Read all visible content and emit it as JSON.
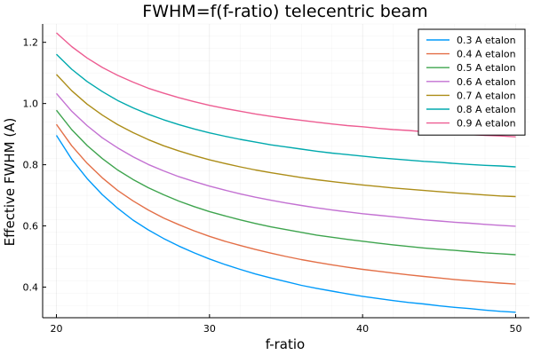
{
  "chart_data": {
    "type": "line",
    "title": "FWHM=f(f-ratio) telecentric beam",
    "xlabel": "f-ratio",
    "ylabel": "Effective FWHM (A)",
    "xlim": [
      19.1,
      50.9
    ],
    "ylim": [
      0.3,
      1.26
    ],
    "xticks": [
      20,
      30,
      40,
      50
    ],
    "yticks": [
      0.4,
      0.6,
      0.8,
      1.0,
      1.2
    ],
    "ytick_labels": [
      "0.4",
      "0.6",
      "0.8",
      "1.0",
      "1.2"
    ],
    "grid": true,
    "legend_position": "top-right",
    "x": [
      20,
      21,
      22,
      23,
      24,
      25,
      26,
      27,
      28,
      29,
      30,
      31,
      32,
      33,
      34,
      35,
      36,
      37,
      38,
      39,
      40,
      41,
      42,
      43,
      44,
      45,
      46,
      47,
      48,
      49,
      50
    ],
    "series": [
      {
        "name": "0.3 A etalon",
        "color": "#009AFA",
        "values": [
          0.896,
          0.818,
          0.755,
          0.702,
          0.658,
          0.619,
          0.587,
          0.559,
          0.534,
          0.512,
          0.492,
          0.474,
          0.458,
          0.443,
          0.43,
          0.418,
          0.406,
          0.396,
          0.387,
          0.378,
          0.37,
          0.363,
          0.356,
          0.35,
          0.345,
          0.339,
          0.334,
          0.33,
          0.325,
          0.321,
          0.318
        ]
      },
      {
        "name": "0.4 A etalon",
        "color": "#E36F47",
        "values": [
          0.932,
          0.862,
          0.805,
          0.757,
          0.716,
          0.682,
          0.652,
          0.626,
          0.604,
          0.584,
          0.566,
          0.55,
          0.536,
          0.523,
          0.511,
          0.5,
          0.49,
          0.481,
          0.473,
          0.465,
          0.458,
          0.452,
          0.446,
          0.44,
          0.435,
          0.43,
          0.425,
          0.421,
          0.417,
          0.413,
          0.41
        ]
      },
      {
        "name": "0.5 A etalon",
        "color": "#3EA44E",
        "values": [
          0.978,
          0.915,
          0.863,
          0.82,
          0.783,
          0.752,
          0.725,
          0.702,
          0.681,
          0.663,
          0.647,
          0.633,
          0.62,
          0.608,
          0.597,
          0.588,
          0.579,
          0.57,
          0.563,
          0.556,
          0.55,
          0.544,
          0.538,
          0.533,
          0.528,
          0.524,
          0.52,
          0.516,
          0.512,
          0.509,
          0.506
        ]
      },
      {
        "name": "0.6 A etalon",
        "color": "#C371D2",
        "values": [
          1.033,
          0.975,
          0.928,
          0.888,
          0.855,
          0.826,
          0.801,
          0.78,
          0.761,
          0.745,
          0.73,
          0.717,
          0.705,
          0.694,
          0.684,
          0.675,
          0.667,
          0.659,
          0.652,
          0.646,
          0.64,
          0.635,
          0.63,
          0.625,
          0.62,
          0.616,
          0.612,
          0.609,
          0.605,
          0.602,
          0.599
        ]
      },
      {
        "name": "0.7 A etalon",
        "color": "#AC8D18",
        "values": [
          1.095,
          1.042,
          0.998,
          0.962,
          0.931,
          0.905,
          0.882,
          0.862,
          0.845,
          0.83,
          0.816,
          0.804,
          0.793,
          0.783,
          0.774,
          0.766,
          0.758,
          0.751,
          0.745,
          0.739,
          0.734,
          0.729,
          0.724,
          0.72,
          0.716,
          0.712,
          0.708,
          0.705,
          0.701,
          0.698,
          0.696
        ]
      },
      {
        "name": "0.8 A etalon",
        "color": "#00A9AD",
        "values": [
          1.161,
          1.112,
          1.072,
          1.039,
          1.01,
          0.986,
          0.965,
          0.947,
          0.931,
          0.917,
          0.904,
          0.893,
          0.883,
          0.874,
          0.865,
          0.858,
          0.851,
          0.844,
          0.838,
          0.833,
          0.828,
          0.823,
          0.819,
          0.815,
          0.811,
          0.808,
          0.804,
          0.801,
          0.798,
          0.796,
          0.793
        ]
      },
      {
        "name": "0.9 A etalon",
        "color": "#ED5D92",
        "values": [
          1.231,
          1.186,
          1.149,
          1.118,
          1.092,
          1.07,
          1.05,
          1.034,
          1.019,
          1.006,
          0.994,
          0.984,
          0.975,
          0.966,
          0.958,
          0.951,
          0.945,
          0.939,
          0.933,
          0.928,
          0.924,
          0.919,
          0.915,
          0.912,
          0.908,
          0.905,
          0.902,
          0.899,
          0.896,
          0.894,
          0.891
        ]
      }
    ]
  }
}
